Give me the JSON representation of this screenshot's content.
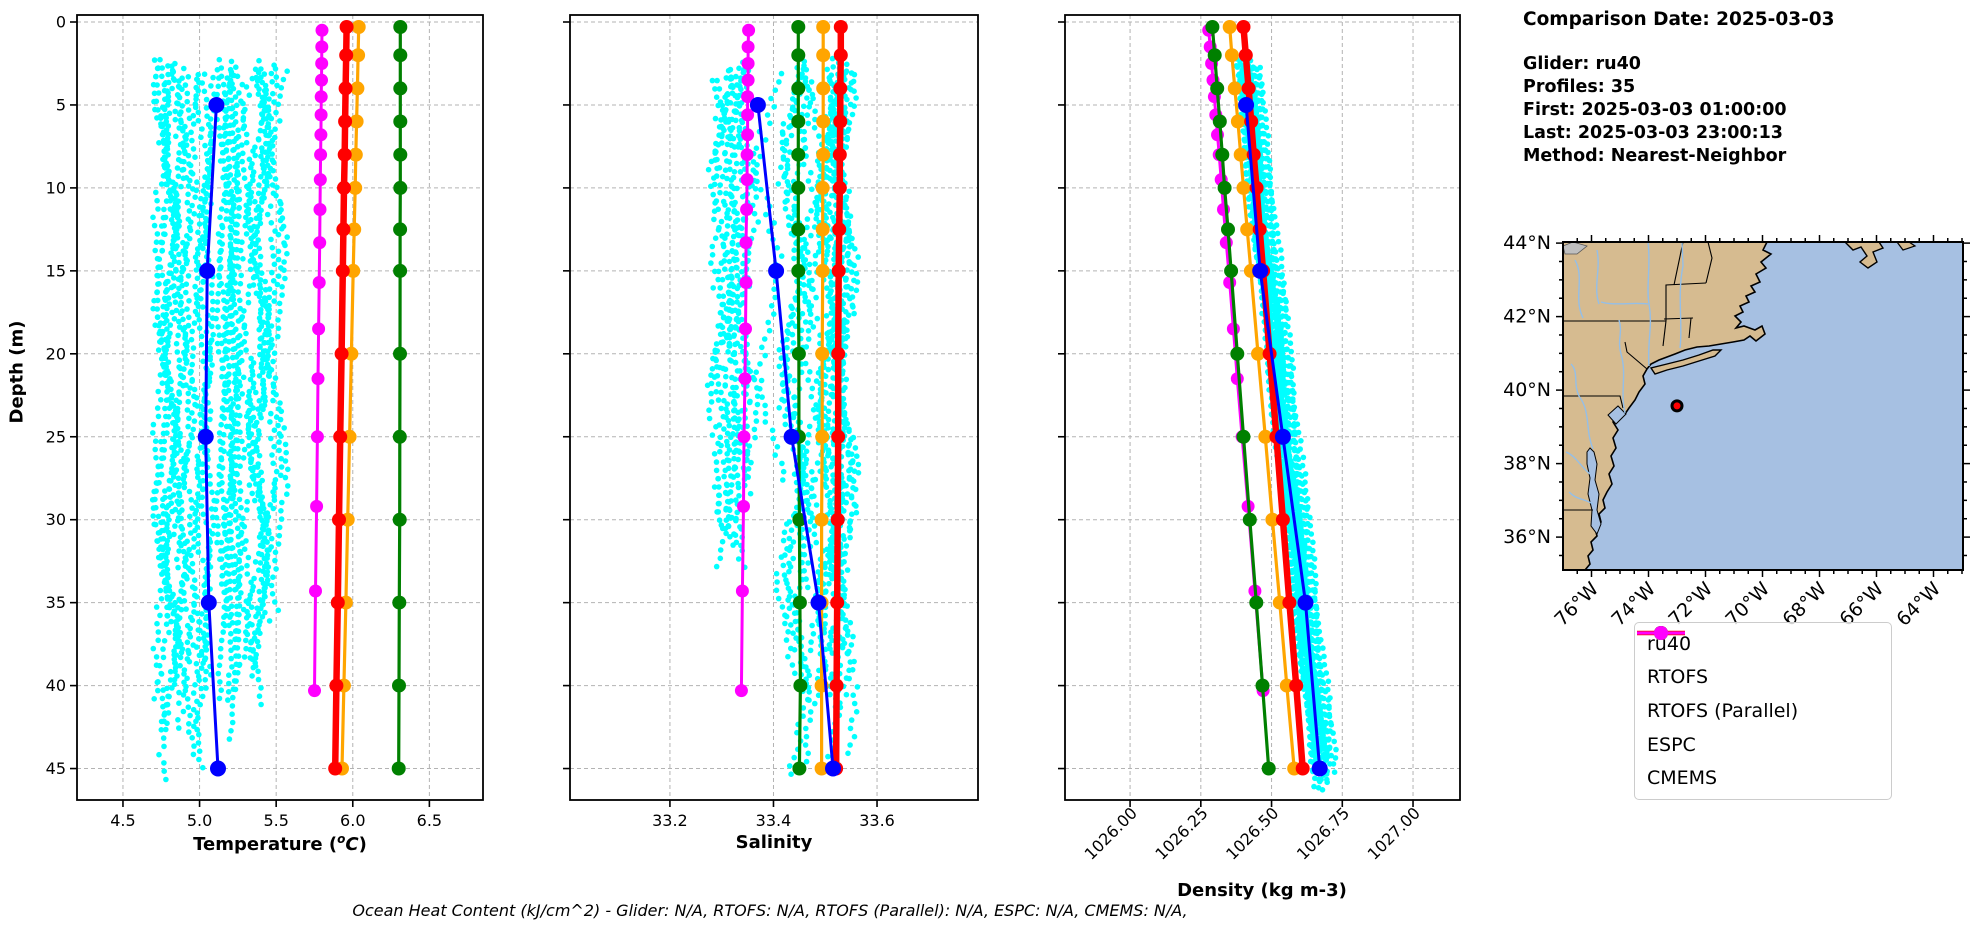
{
  "info_panel": {
    "comparison_date": "Comparison Date: 2025-03-03",
    "glider": "Glider: ru40",
    "profiles": "Profiles: 35",
    "first": "First: 2025-03-03 01:00:00",
    "last": "Last: 2025-03-03 23:00:13",
    "method": "Method: Nearest-Neighbor"
  },
  "footer": {
    "text": "Ocean Heat Content (kJ/cm^2) - Glider: N/A,  RTOFS: N/A,  RTOFS (Parallel): N/A,  ESPC: N/A,  CMEMS: N/A,"
  },
  "axis_labels": {
    "depth": "Depth (m)",
    "temperature_parts": {
      "pre": "Temperature (",
      "sup": "o",
      "unit": "C",
      "post": ")"
    },
    "salinity": "Salinity",
    "density": "Density (kg m-3)"
  },
  "legend": {
    "entries": [
      {
        "label": "ru40",
        "color": "#0000ff"
      },
      {
        "label": "RTOFS",
        "color": "#ff0000"
      },
      {
        "label": "RTOFS (Parallel)",
        "color": "#ffa500"
      },
      {
        "label": "ESPC",
        "color": "#008000"
      },
      {
        "label": "CMEMS",
        "color": "#ff00ff"
      }
    ]
  },
  "colors": {
    "scatter": "#00ffff",
    "grid": "#b3b3b3",
    "land": "#d6bb90",
    "ocean": "#a6c0e2",
    "river": "#94bfe8",
    "lake": "#bfbfbf",
    "marker": "#ff0000"
  },
  "chart_data": [
    {
      "type": "line",
      "id": "temperature",
      "xlabel": "Temperature (°C)",
      "ylabel": "Depth (m)",
      "xlim": [
        4.2,
        6.85
      ],
      "ylim": [
        0,
        47
      ],
      "xticks": [
        4.5,
        5.0,
        5.5,
        6.0,
        6.5
      ],
      "xtick_labels": [
        "4.5",
        "5.0",
        "5.5",
        "6.0",
        "6.5"
      ],
      "yticks": [
        0,
        5,
        10,
        15,
        20,
        25,
        30,
        35,
        40,
        45
      ],
      "ytick_labels": [
        "0",
        "5",
        "10",
        "15",
        "20",
        "25",
        "30",
        "35",
        "40",
        "45"
      ],
      "rotate_xticks": false,
      "grid": true,
      "scatter": {
        "name": "glider-raw-points",
        "color": "#00ffff",
        "clusters": [
          {
            "n": 13,
            "x_min": 4.74,
            "x_max": 5.03,
            "d_min": 2.2,
            "d_max": 46.2
          },
          {
            "n": 8,
            "x_min": 5.04,
            "x_max": 5.23,
            "d_min": 2.2,
            "d_max": 46.0
          },
          {
            "n": 9,
            "x_min": 5.28,
            "x_max": 5.58,
            "d_min": 2.2,
            "d_max": 42.0
          }
        ]
      },
      "series": [
        {
          "name": "CMEMS",
          "color": "#ff00ff",
          "lw": 3,
          "ms": 6.5,
          "depths": [
            0.5,
            1.5,
            2.5,
            3.5,
            4.5,
            5.6,
            6.8,
            8,
            9.5,
            11.3,
            13.3,
            15.7,
            18.5,
            21.5,
            25,
            29.2,
            34.3,
            40.3
          ],
          "values": [
            5.799,
            5.798,
            5.797,
            5.796,
            5.794,
            5.793,
            5.792,
            5.79,
            5.788,
            5.786,
            5.784,
            5.781,
            5.777,
            5.773,
            5.769,
            5.764,
            5.757,
            5.75
          ]
        },
        {
          "name": "ESPC",
          "color": "#008000",
          "lw": 3.2,
          "ms": 7,
          "depths": [
            0.3,
            2,
            4,
            6,
            8,
            10,
            12.5,
            15,
            20,
            25,
            30,
            35,
            40,
            45
          ],
          "values": [
            6.31,
            6.31,
            6.31,
            6.31,
            6.31,
            6.31,
            6.309,
            6.309,
            6.308,
            6.307,
            6.306,
            6.304,
            6.302,
            6.3
          ]
        },
        {
          "name": "RTOFS (Parallel)",
          "color": "#ffa500",
          "lw": 3.2,
          "ms": 7,
          "depths": [
            0.3,
            2,
            4,
            6,
            8,
            10,
            12.5,
            15,
            20,
            25,
            30,
            35,
            40,
            45
          ],
          "values": [
            6.039,
            6.035,
            6.03,
            6.025,
            6.02,
            6.016,
            6.009,
            6.003,
            5.991,
            5.979,
            5.967,
            5.955,
            5.942,
            5.93
          ]
        },
        {
          "name": "RTOFS",
          "color": "#ff0000",
          "lw": 6.5,
          "ms": 7,
          "depths": [
            0.3,
            2,
            4,
            6,
            8,
            10,
            12.5,
            15,
            20,
            25,
            30,
            35,
            40,
            45
          ],
          "values": [
            5.96,
            5.957,
            5.953,
            5.95,
            5.947,
            5.943,
            5.939,
            5.935,
            5.927,
            5.918,
            5.91,
            5.902,
            5.893,
            5.885
          ]
        },
        {
          "name": "ru40",
          "color": "#0000ff",
          "lw": 3,
          "ms": 8,
          "depths": [
            5,
            15,
            25,
            35,
            45
          ],
          "values": [
            5.11,
            5.05,
            5.04,
            5.06,
            5.12
          ]
        }
      ]
    },
    {
      "type": "line",
      "id": "salinity",
      "xlabel": "Salinity",
      "ylabel": "Depth (m)",
      "xlim": [
        33.007,
        33.795
      ],
      "ylim": [
        0,
        47
      ],
      "xticks": [
        33.2,
        33.4,
        33.6
      ],
      "xtick_labels": [
        "33.2",
        "33.4",
        "33.6"
      ],
      "yticks": [
        0,
        5,
        10,
        15,
        20,
        25,
        30,
        35,
        40,
        45
      ],
      "ytick_labels": [],
      "rotate_xticks": false,
      "grid": true,
      "scatter": {
        "name": "glider-raw-points",
        "color": "#00ffff",
        "clusters": [
          {
            "n": 11,
            "x_min": 33.29,
            "x_max": 33.42,
            "d_min": 2.2,
            "d_max": 33.5
          },
          {
            "n": 17,
            "x_min": 33.43,
            "x_max": 33.55,
            "d_min": 2.2,
            "d_max": 46.4
          }
        ]
      },
      "series": [
        {
          "name": "CMEMS",
          "color": "#ff00ff",
          "lw": 3,
          "ms": 6.5,
          "depths": [
            0.5,
            1.5,
            2.5,
            3.5,
            4.5,
            5.6,
            6.8,
            8,
            9.5,
            11.3,
            13.3,
            15.7,
            18.5,
            21.5,
            25,
            29.2,
            34.3,
            40.3
          ],
          "values": [
            33.352,
            33.351,
            33.351,
            33.351,
            33.35,
            33.35,
            33.35,
            33.349,
            33.349,
            33.348,
            33.347,
            33.347,
            33.346,
            33.345,
            33.343,
            33.342,
            33.34,
            33.338
          ]
        },
        {
          "name": "ESPC",
          "color": "#008000",
          "lw": 3.2,
          "ms": 7,
          "depths": [
            0.3,
            2,
            4,
            6,
            8,
            10,
            12.5,
            15,
            20,
            25,
            30,
            35,
            40,
            45
          ],
          "values": [
            33.448,
            33.448,
            33.448,
            33.448,
            33.448,
            33.448,
            33.448,
            33.448,
            33.449,
            33.449,
            33.45,
            33.451,
            33.452,
            33.45
          ]
        },
        {
          "name": "RTOFS (Parallel)",
          "color": "#ffa500",
          "lw": 3.2,
          "ms": 7,
          "depths": [
            0.3,
            2,
            4,
            6,
            8,
            10,
            12.5,
            15,
            20,
            25,
            30,
            35,
            40,
            45
          ],
          "values": [
            33.496,
            33.496,
            33.496,
            33.496,
            33.496,
            33.495,
            33.495,
            33.495,
            33.494,
            33.494,
            33.493,
            33.493,
            33.493,
            33.493
          ]
        },
        {
          "name": "RTOFS",
          "color": "#ff0000",
          "lw": 6.5,
          "ms": 7,
          "depths": [
            0.3,
            2,
            4,
            6,
            8,
            10,
            12.5,
            15,
            20,
            25,
            30,
            35,
            40,
            45
          ],
          "values": [
            33.53,
            33.53,
            33.529,
            33.529,
            33.528,
            33.528,
            33.527,
            33.526,
            33.525,
            33.525,
            33.524,
            33.523,
            33.522,
            33.521
          ]
        },
        {
          "name": "ru40",
          "color": "#0000ff",
          "lw": 3,
          "ms": 8,
          "depths": [
            5,
            15,
            25,
            35,
            45
          ],
          "values": [
            33.37,
            33.405,
            33.435,
            33.487,
            33.515
          ]
        }
      ]
    },
    {
      "type": "line",
      "id": "density",
      "xlabel": "Density (kg m-3)",
      "ylabel": "Depth (m)",
      "xlim": [
        1025.77,
        1027.166
      ],
      "ylim": [
        0,
        47
      ],
      "xticks": [
        1026.0,
        1026.25,
        1026.5,
        1026.75,
        1027.0
      ],
      "xtick_labels": [
        "1026.00",
        "1026.25",
        "1026.50",
        "1026.75",
        "1027.00"
      ],
      "yticks": [
        0,
        5,
        10,
        15,
        20,
        25,
        30,
        35,
        40,
        45
      ],
      "ytick_labels": [],
      "rotate_xticks": true,
      "grid": true,
      "scatter": {
        "name": "glider-raw-points",
        "color": "#00ffff",
        "band": {
          "n": 28,
          "x_top": 1026.402,
          "slope_per_m": 0.0064,
          "spread": 0.042,
          "d_min": 2.2,
          "d_max": 46.4
        }
      },
      "series": [
        {
          "name": "CMEMS",
          "color": "#ff00ff",
          "lw": 3,
          "ms": 6.5,
          "depths": [
            0.5,
            1.5,
            2.5,
            3.5,
            4.5,
            5.6,
            6.8,
            8,
            9.5,
            11.3,
            13.3,
            15.7,
            18.5,
            21.5,
            25,
            29.2,
            34.3,
            40.3
          ],
          "values": [
            1026.278,
            1026.283,
            1026.288,
            1026.293,
            1026.298,
            1026.303,
            1026.309,
            1026.315,
            1026.322,
            1026.33,
            1026.34,
            1026.352,
            1026.365,
            1026.379,
            1026.396,
            1026.417,
            1026.441,
            1026.47
          ]
        },
        {
          "name": "ESPC",
          "color": "#008000",
          "lw": 3.2,
          "ms": 7,
          "depths": [
            0.3,
            2,
            4,
            6,
            8,
            10,
            12.5,
            15,
            20,
            25,
            30,
            35,
            40,
            45
          ],
          "values": [
            1026.291,
            1026.299,
            1026.308,
            1026.317,
            1026.326,
            1026.334,
            1026.346,
            1026.357,
            1026.379,
            1026.401,
            1026.423,
            1026.446,
            1026.468,
            1026.49
          ]
        },
        {
          "name": "RTOFS (Parallel)",
          "color": "#ffa500",
          "lw": 3.2,
          "ms": 7,
          "depths": [
            0.3,
            2,
            4,
            6,
            8,
            10,
            12.5,
            15,
            20,
            25,
            30,
            35,
            40,
            45
          ],
          "values": [
            1026.352,
            1026.36,
            1026.37,
            1026.381,
            1026.391,
            1026.401,
            1026.414,
            1026.427,
            1026.452,
            1026.478,
            1026.503,
            1026.529,
            1026.554,
            1026.58
          ]
        },
        {
          "name": "RTOFS",
          "color": "#ff0000",
          "lw": 6.5,
          "ms": 7,
          "depths": [
            0.3,
            2,
            4,
            6,
            8,
            10,
            12.5,
            15,
            20,
            25,
            30,
            35,
            40,
            45
          ],
          "values": [
            1026.401,
            1026.409,
            1026.419,
            1026.428,
            1026.437,
            1026.447,
            1026.458,
            1026.47,
            1026.493,
            1026.517,
            1026.54,
            1026.563,
            1026.587,
            1026.61
          ]
        },
        {
          "name": "ru40",
          "color": "#0000ff",
          "lw": 3,
          "ms": 8,
          "depths": [
            5,
            15,
            25,
            35,
            45
          ],
          "values": [
            1026.41,
            1026.46,
            1026.54,
            1026.62,
            1026.67
          ]
        }
      ]
    }
  ],
  "map": {
    "lat_ticks": [
      {
        "value": 44,
        "label": "44°N"
      },
      {
        "value": 42,
        "label": "42°N"
      },
      {
        "value": 40,
        "label": "40°N"
      },
      {
        "value": 38,
        "label": "38°N"
      },
      {
        "value": 36,
        "label": "36°N"
      }
    ],
    "lon_ticks": [
      {
        "value": -76,
        "label": "76°W"
      },
      {
        "value": -74,
        "label": "74°W"
      },
      {
        "value": -72,
        "label": "72°W"
      },
      {
        "value": -70,
        "label": "70°W"
      },
      {
        "value": -68,
        "label": "68°W"
      },
      {
        "value": -66,
        "label": "66°W"
      },
      {
        "value": -64,
        "label": "64°W"
      }
    ],
    "glider_marker": {
      "lat": 39.57,
      "lon": -73.0,
      "color": "#ff0000"
    }
  }
}
